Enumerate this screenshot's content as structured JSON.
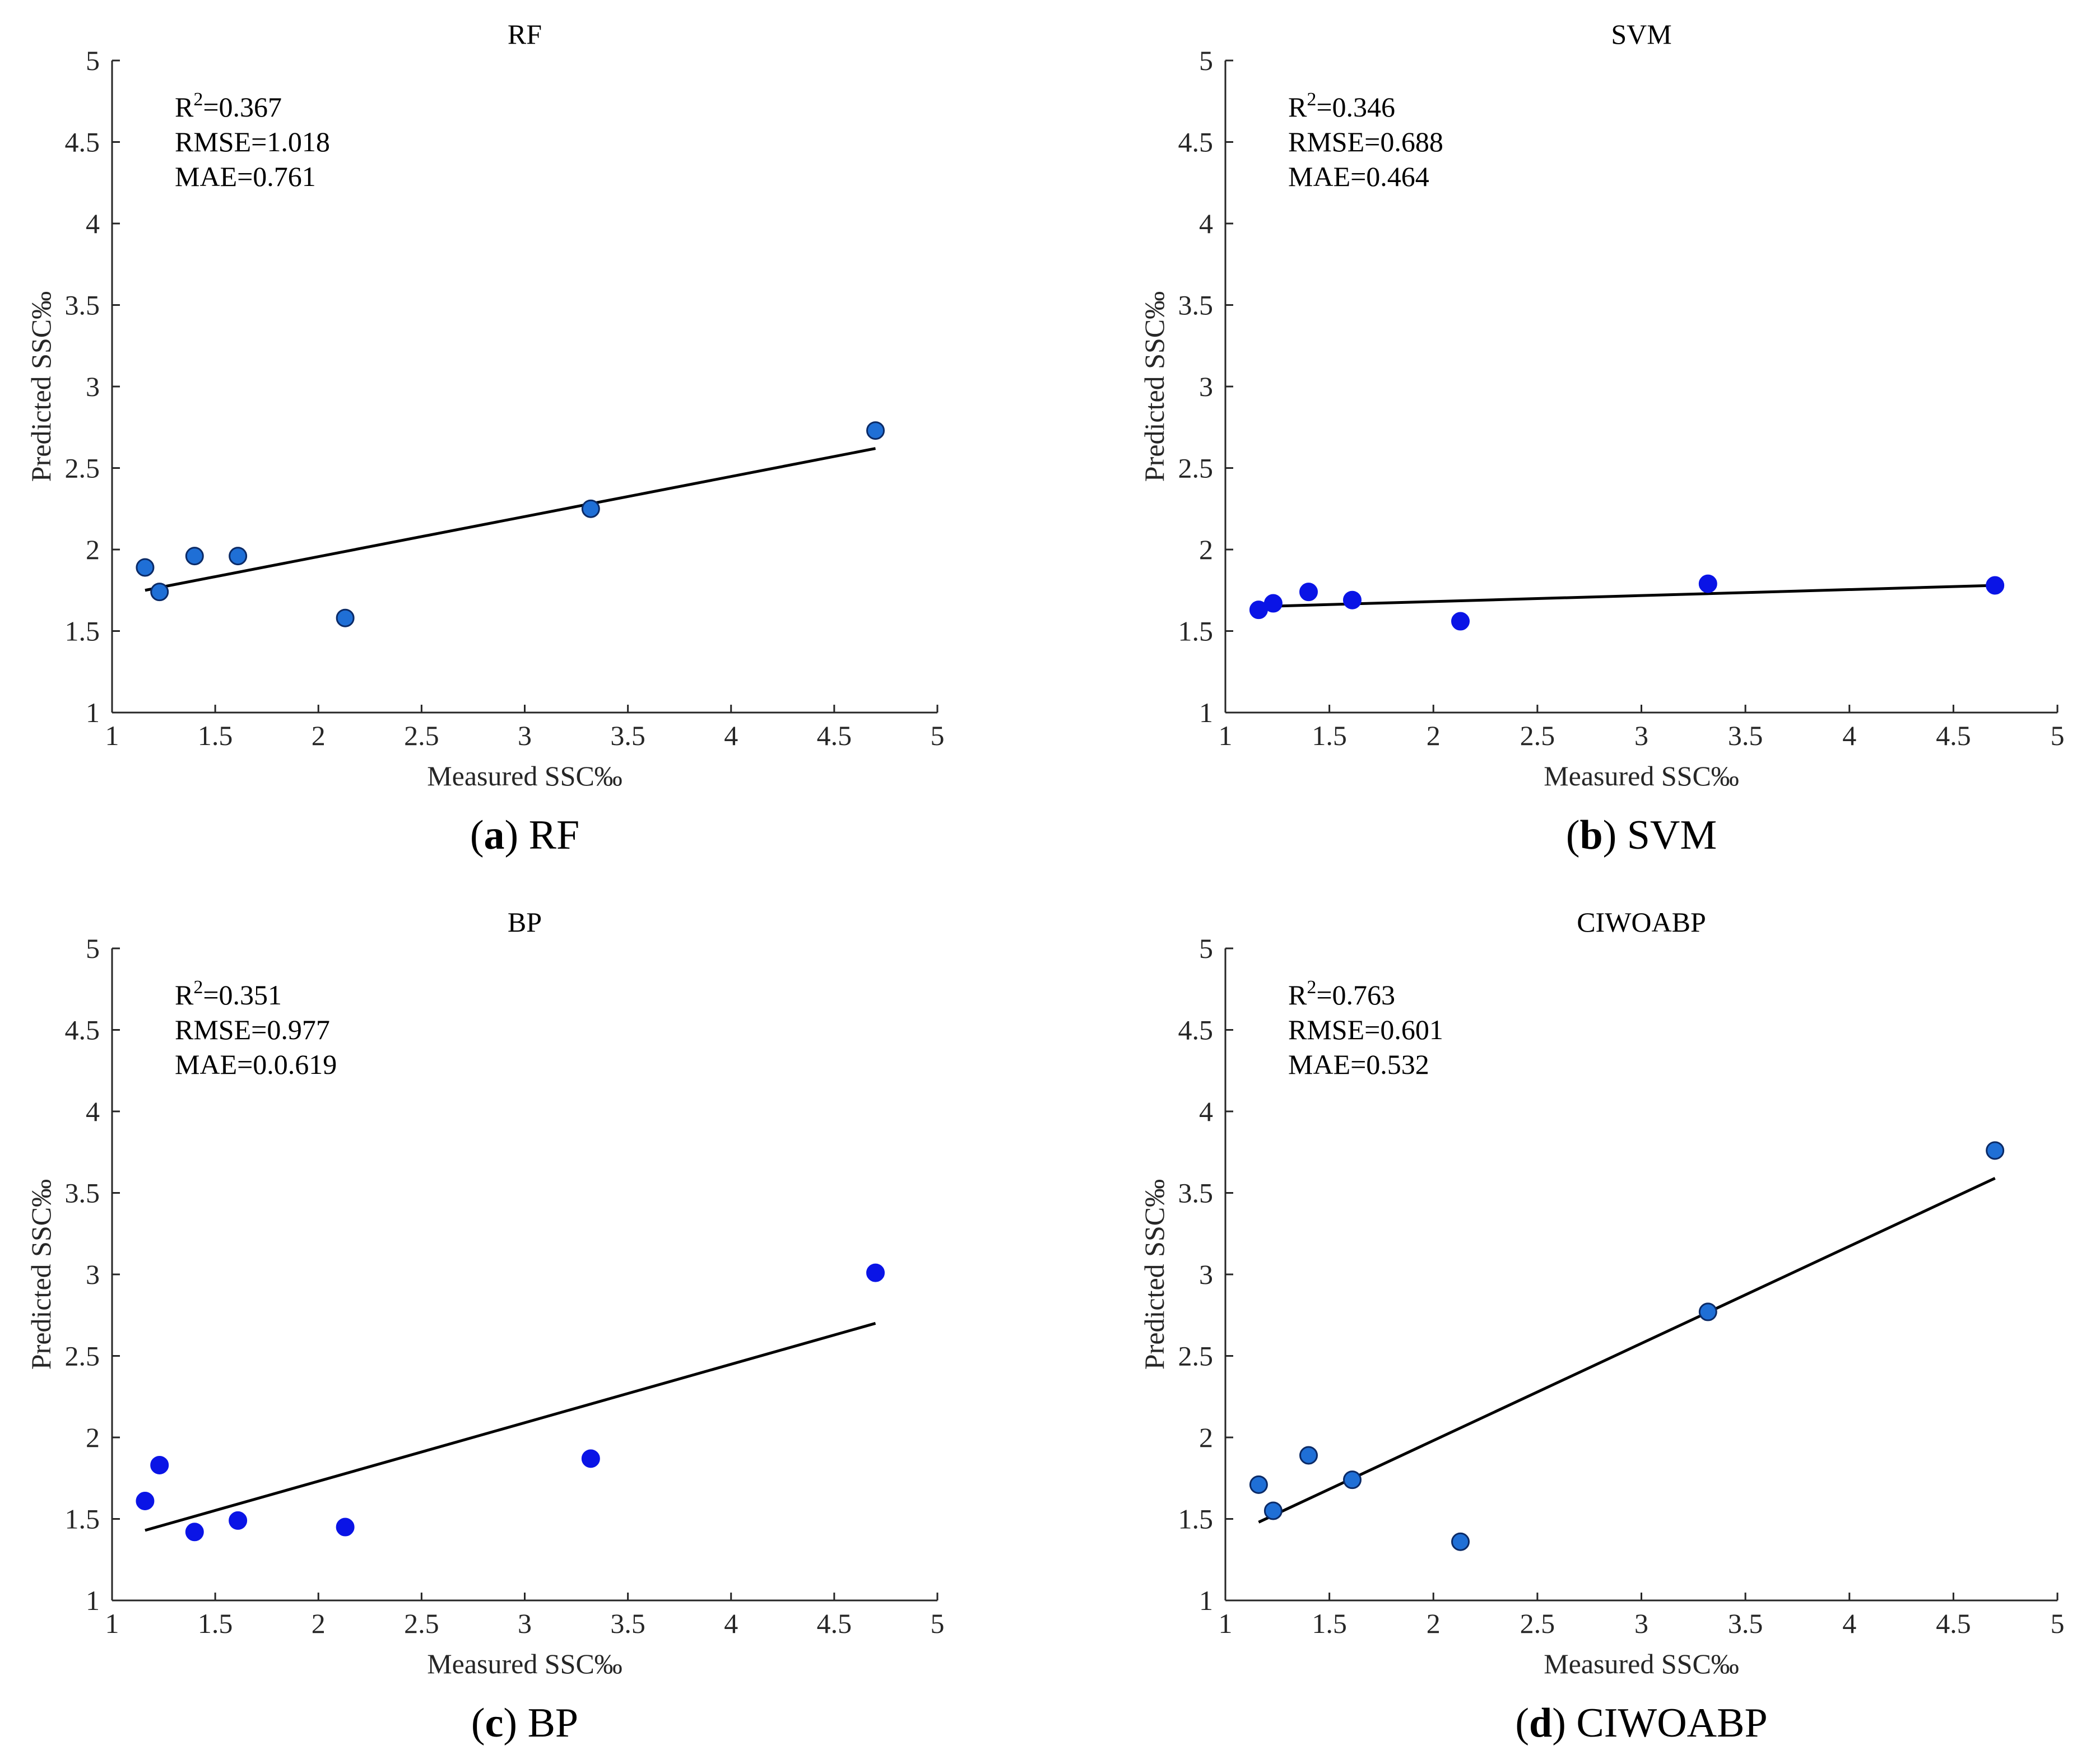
{
  "x_axis_label": "Measured SSC‰",
  "y_axis_label": "Predicted SSC‰",
  "axis_range": [
    1,
    5
  ],
  "ticks": [
    1,
    1.5,
    2,
    2.5,
    3,
    3.5,
    4,
    4.5,
    5
  ],
  "chart_data": [
    {
      "type": "scatter",
      "title": "RF",
      "caption_letter": "a",
      "caption_name": "RF",
      "xlabel": "Measured SSC‰",
      "ylabel": "Predicted SSC‰",
      "xlim": [
        1,
        5
      ],
      "ylim": [
        1,
        5
      ],
      "marker_fill": "#1f6fd6",
      "marker_edge": "#0b2a66",
      "stats": [
        "=0.367",
        "RMSE=1.018",
        "MAE=0.761"
      ],
      "points": [
        {
          "x": 1.16,
          "y": 1.89
        },
        {
          "x": 1.23,
          "y": 1.74
        },
        {
          "x": 1.4,
          "y": 1.96
        },
        {
          "x": 1.61,
          "y": 1.96
        },
        {
          "x": 2.13,
          "y": 1.58
        },
        {
          "x": 3.32,
          "y": 2.25
        },
        {
          "x": 4.7,
          "y": 2.73
        }
      ],
      "fit_line": [
        {
          "x": 1.16,
          "y": 1.75
        },
        {
          "x": 4.7,
          "y": 2.62
        }
      ]
    },
    {
      "type": "scatter",
      "title": "SVM",
      "caption_letter": "b",
      "caption_name": "SVM",
      "xlabel": "Measured SSC‰",
      "ylabel": "Predicted SSC‰",
      "xlim": [
        1,
        5
      ],
      "ylim": [
        1,
        5
      ],
      "marker_fill": "#0a14e6",
      "marker_edge": "#0a14e6",
      "stats": [
        "=0.346",
        "RMSE=0.688",
        "MAE=0.464"
      ],
      "points": [
        {
          "x": 1.16,
          "y": 1.63
        },
        {
          "x": 1.23,
          "y": 1.67
        },
        {
          "x": 1.4,
          "y": 1.74
        },
        {
          "x": 1.61,
          "y": 1.69
        },
        {
          "x": 2.13,
          "y": 1.56
        },
        {
          "x": 3.32,
          "y": 1.79
        },
        {
          "x": 4.7,
          "y": 1.78
        }
      ],
      "fit_line": [
        {
          "x": 1.16,
          "y": 1.65
        },
        {
          "x": 4.7,
          "y": 1.78
        }
      ]
    },
    {
      "type": "scatter",
      "title": "BP",
      "caption_letter": "c",
      "caption_name": "BP",
      "xlabel": "Measured SSC‰",
      "ylabel": "Predicted SSC‰",
      "xlim": [
        1,
        5
      ],
      "ylim": [
        1,
        5
      ],
      "marker_fill": "#0a14e6",
      "marker_edge": "#0a14e6",
      "stats": [
        "=0.351",
        "RMSE=0.977",
        "MAE=0.0.619"
      ],
      "points": [
        {
          "x": 1.16,
          "y": 1.61
        },
        {
          "x": 1.23,
          "y": 1.83
        },
        {
          "x": 1.4,
          "y": 1.42
        },
        {
          "x": 1.61,
          "y": 1.49
        },
        {
          "x": 2.13,
          "y": 1.45
        },
        {
          "x": 3.32,
          "y": 1.87
        },
        {
          "x": 4.7,
          "y": 3.01
        }
      ],
      "fit_line": [
        {
          "x": 1.16,
          "y": 1.43
        },
        {
          "x": 4.7,
          "y": 2.7
        }
      ]
    },
    {
      "type": "scatter",
      "title": "CIWOABP",
      "caption_letter": "d",
      "caption_name": "CIWOABP",
      "xlabel": "Measured SSC‰",
      "ylabel": "Predicted SSC‰",
      "xlim": [
        1,
        5
      ],
      "ylim": [
        1,
        5
      ],
      "marker_fill": "#1f6fd6",
      "marker_edge": "#0b2a66",
      "stats": [
        "=0.763",
        "RMSE=0.601",
        "MAE=0.532"
      ],
      "points": [
        {
          "x": 1.16,
          "y": 1.71
        },
        {
          "x": 1.23,
          "y": 1.55
        },
        {
          "x": 1.4,
          "y": 1.89
        },
        {
          "x": 1.61,
          "y": 1.74
        },
        {
          "x": 2.13,
          "y": 1.36
        },
        {
          "x": 3.32,
          "y": 2.77
        },
        {
          "x": 4.7,
          "y": 3.76
        }
      ],
      "fit_line": [
        {
          "x": 1.16,
          "y": 1.48
        },
        {
          "x": 4.7,
          "y": 3.59
        }
      ]
    }
  ]
}
